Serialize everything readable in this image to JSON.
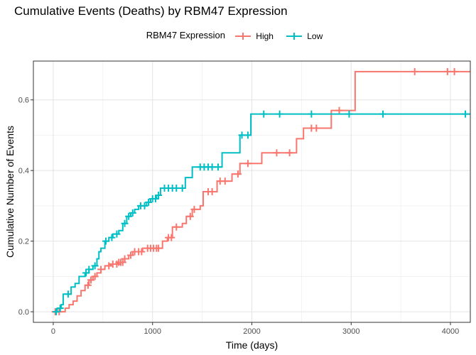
{
  "chart_data": {
    "type": "line",
    "title": "Cumulative Events (Deaths) by RBM47 Expression",
    "xlabel": "Time (days)",
    "ylabel": "Cumulative Number of Events",
    "xlim": [
      -200,
      4200
    ],
    "ylim": [
      -0.03,
      0.71
    ],
    "x_ticks": [
      0,
      1000,
      2000,
      3000,
      4000
    ],
    "x_tick_labels": [
      "0",
      "1000",
      "2000",
      "3000",
      "4000"
    ],
    "y_ticks": [
      0.0,
      0.2,
      0.4,
      0.6
    ],
    "y_tick_labels": [
      "0.0",
      "0.2",
      "0.4",
      "0.6"
    ],
    "grid": true,
    "legend": {
      "title": "RBM47 Expression",
      "position": "top"
    },
    "series": [
      {
        "name": "High",
        "color": "#F8766D",
        "steps": [
          [
            0,
            0.0
          ],
          [
            120,
            0.01
          ],
          [
            160,
            0.02
          ],
          [
            200,
            0.03
          ],
          [
            240,
            0.045
          ],
          [
            280,
            0.06
          ],
          [
            320,
            0.075
          ],
          [
            360,
            0.09
          ],
          [
            400,
            0.1
          ],
          [
            440,
            0.11
          ],
          [
            480,
            0.12
          ],
          [
            520,
            0.13
          ],
          [
            580,
            0.135
          ],
          [
            650,
            0.14
          ],
          [
            720,
            0.15
          ],
          [
            760,
            0.16
          ],
          [
            800,
            0.17
          ],
          [
            900,
            0.18
          ],
          [
            1100,
            0.2
          ],
          [
            1150,
            0.21
          ],
          [
            1200,
            0.24
          ],
          [
            1300,
            0.25
          ],
          [
            1340,
            0.27
          ],
          [
            1400,
            0.29
          ],
          [
            1480,
            0.3
          ],
          [
            1510,
            0.34
          ],
          [
            1650,
            0.37
          ],
          [
            1800,
            0.39
          ],
          [
            1880,
            0.42
          ],
          [
            2100,
            0.45
          ],
          [
            2450,
            0.49
          ],
          [
            2520,
            0.52
          ],
          [
            2800,
            0.57
          ],
          [
            3040,
            0.68
          ],
          [
            4200,
            0.68
          ]
        ],
        "censor_x": [
          20,
          60,
          350,
          380,
          420,
          480,
          560,
          600,
          640,
          660,
          680,
          700,
          720,
          780,
          820,
          860,
          890,
          950,
          980,
          1010,
          1040,
          1060,
          1160,
          1190,
          1240,
          1380,
          1420,
          1560,
          1600,
          1680,
          1730,
          1860,
          1960,
          2250,
          2380,
          2600,
          2650,
          2880,
          3640,
          3970,
          4040
        ]
      },
      {
        "name": "Low",
        "color": "#00BFC4",
        "steps": [
          [
            0,
            0.0
          ],
          [
            40,
            0.01
          ],
          [
            80,
            0.02
          ],
          [
            100,
            0.05
          ],
          [
            180,
            0.07
          ],
          [
            220,
            0.08
          ],
          [
            260,
            0.1
          ],
          [
            320,
            0.11
          ],
          [
            360,
            0.12
          ],
          [
            400,
            0.13
          ],
          [
            440,
            0.15
          ],
          [
            460,
            0.17
          ],
          [
            480,
            0.18
          ],
          [
            520,
            0.2
          ],
          [
            560,
            0.21
          ],
          [
            600,
            0.22
          ],
          [
            660,
            0.23
          ],
          [
            700,
            0.25
          ],
          [
            740,
            0.27
          ],
          [
            780,
            0.28
          ],
          [
            820,
            0.29
          ],
          [
            860,
            0.3
          ],
          [
            940,
            0.31
          ],
          [
            980,
            0.32
          ],
          [
            1040,
            0.33
          ],
          [
            1080,
            0.35
          ],
          [
            1330,
            0.38
          ],
          [
            1400,
            0.41
          ],
          [
            1700,
            0.45
          ],
          [
            1880,
            0.5
          ],
          [
            1990,
            0.56
          ],
          [
            4200,
            0.56
          ]
        ],
        "censor_x": [
          30,
          70,
          150,
          330,
          360,
          420,
          530,
          590,
          640,
          720,
          760,
          800,
          880,
          920,
          960,
          1000,
          1030,
          1060,
          1120,
          1160,
          1200,
          1240,
          1300,
          1480,
          1520,
          1560,
          1600,
          1660,
          1900,
          1960,
          2120,
          2280,
          2600,
          2980,
          3320,
          4150
        ]
      }
    ]
  }
}
